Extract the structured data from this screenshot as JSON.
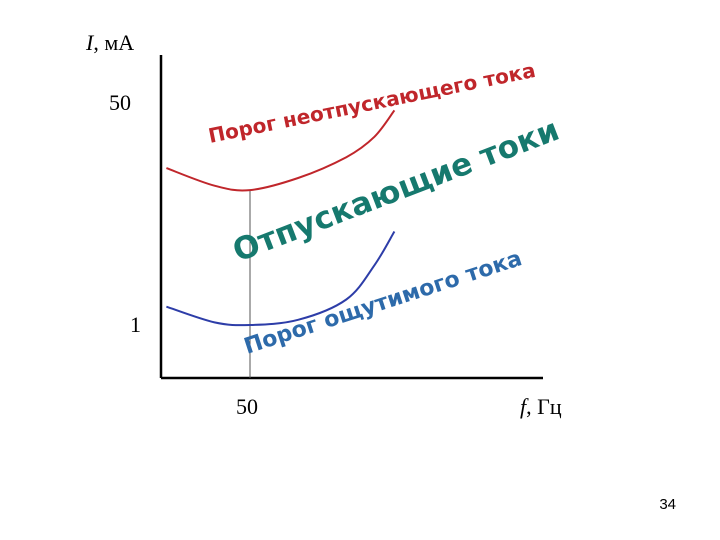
{
  "chart_data": {
    "type": "line",
    "y_axis": {
      "symbol": "I",
      "unit": ", мА",
      "tick_labels": [
        "50",
        "1"
      ]
    },
    "x_axis": {
      "symbol": "f",
      "unit": ", Гц",
      "tick_labels": [
        "50"
      ]
    },
    "series": [
      {
        "name": "Порог неотпускающего тока",
        "color": "#c0262b",
        "points": [
          [
            15,
            18
          ],
          [
            30,
            13
          ],
          [
            50,
            12
          ],
          [
            100,
            15
          ],
          [
            200,
            22
          ],
          [
            300,
            32
          ],
          [
            400,
            52
          ]
        ]
      },
      {
        "name": "Порог ощутимого тока",
        "color": "#2d3da8",
        "points": [
          [
            15,
            1.4
          ],
          [
            30,
            1.05
          ],
          [
            50,
            1.0
          ],
          [
            100,
            1.1
          ],
          [
            200,
            1.6
          ],
          [
            300,
            3.0
          ],
          [
            400,
            5.6
          ]
        ]
      }
    ],
    "region_label": {
      "text": "Отпускающие токи",
      "color": "#16796e"
    },
    "reference_line": {
      "x": 50,
      "y_top": 12
    }
  },
  "page_number": "34"
}
